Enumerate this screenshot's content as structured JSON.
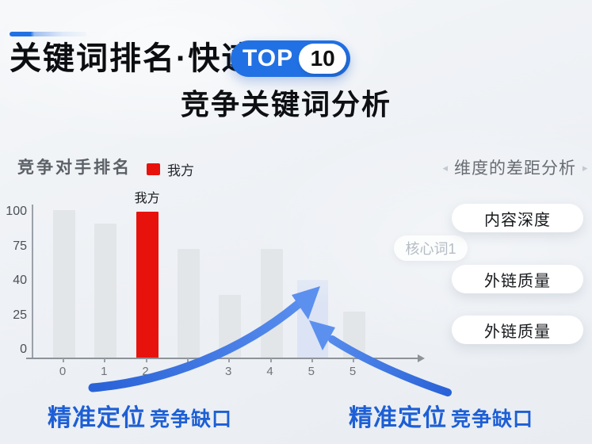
{
  "colors": {
    "accent_blue": "#2171e4",
    "our_red": "#e8120d",
    "arrow_dark": "#2a63d8",
    "arrow_light": "#5c90ef",
    "callout_blue": "#1d5fd5",
    "bar_gray": "#e3e6e9",
    "bar_gap": "#dbe3f4"
  },
  "header": {
    "title": "关键词排名·快速",
    "badge_top": "TOP",
    "badge_number": "10",
    "subtitle": "竞争关键词分析"
  },
  "chart": {
    "heading": "竞争对手排名",
    "legend": {
      "label": "我方"
    },
    "our_bar_label": "我方"
  },
  "chart_data": {
    "type": "bar",
    "title": "竞争对手排名",
    "categories": [
      "0",
      "1",
      "2",
      "",
      "3",
      "4",
      "5",
      "5"
    ],
    "series": [
      {
        "name": "竞争对手排名",
        "values": [
          100,
          91,
          99,
          74,
          43,
          74,
          53,
          32
        ]
      }
    ],
    "our_index": 2,
    "gap_index": 6,
    "annotation_on_bar": "我方",
    "y_tick_labels": [
      "100",
      "75",
      "40",
      "25",
      "0"
    ],
    "ylim": [
      0,
      100
    ],
    "grid": false,
    "legend_position": "top",
    "legend_entries": [
      "我方"
    ]
  },
  "panel": {
    "heading": "维度的差距分析",
    "left_arrow": "◂",
    "right_arrow": "▸",
    "faded_tag": "核心词1",
    "pills": [
      "内容深度",
      "外链质量",
      "外链质量"
    ]
  },
  "callouts": [
    {
      "strong": "精准定位",
      "rest": "竞争缺口"
    },
    {
      "strong": "精准定位",
      "rest": "竞争缺口"
    }
  ]
}
